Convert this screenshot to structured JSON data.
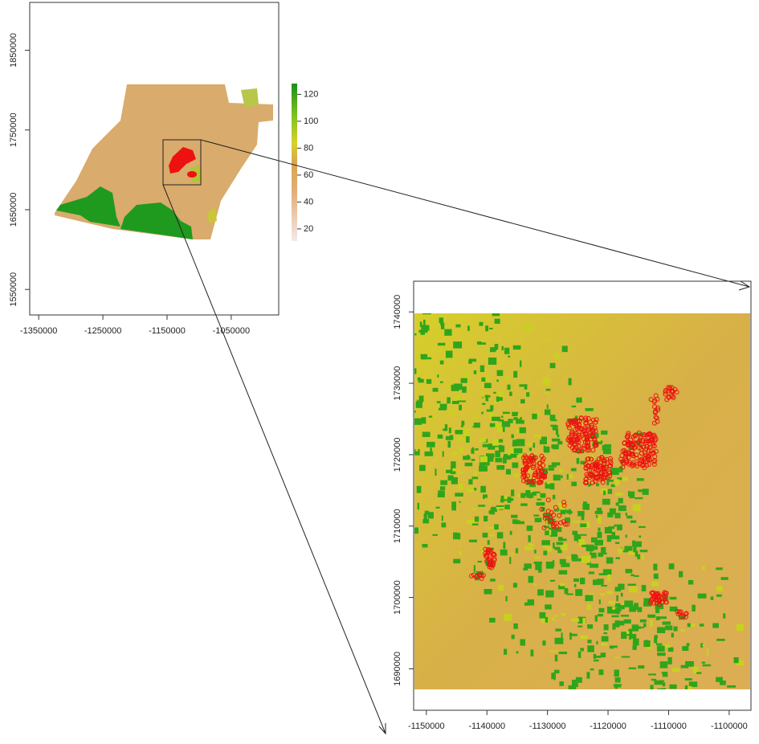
{
  "chart_data": [
    {
      "type": "raster",
      "xlim": [
        -1364000,
        -976000
      ],
      "ylim": [
        1518000,
        1910000
      ],
      "xticks": [
        -1350000,
        -1250000,
        -1150000,
        -1050000
      ],
      "yticks": [
        1550000,
        1650000,
        1750000,
        1850000
      ],
      "colorbar": {
        "lim": [
          11,
          128
        ],
        "ticks": [
          20,
          40,
          60,
          80,
          100,
          120
        ]
      }
    },
    {
      "type": "raster",
      "xlim": [
        -1152100,
        -1096400
      ],
      "ylim": [
        1684200,
        1744300
      ],
      "xticks": [
        -1150000,
        -1140000,
        -1130000,
        -1120000,
        -1110000,
        -1100000
      ],
      "yticks": [
        1690000,
        1700000,
        1710000,
        1720000,
        1730000,
        1740000
      ]
    }
  ]
}
